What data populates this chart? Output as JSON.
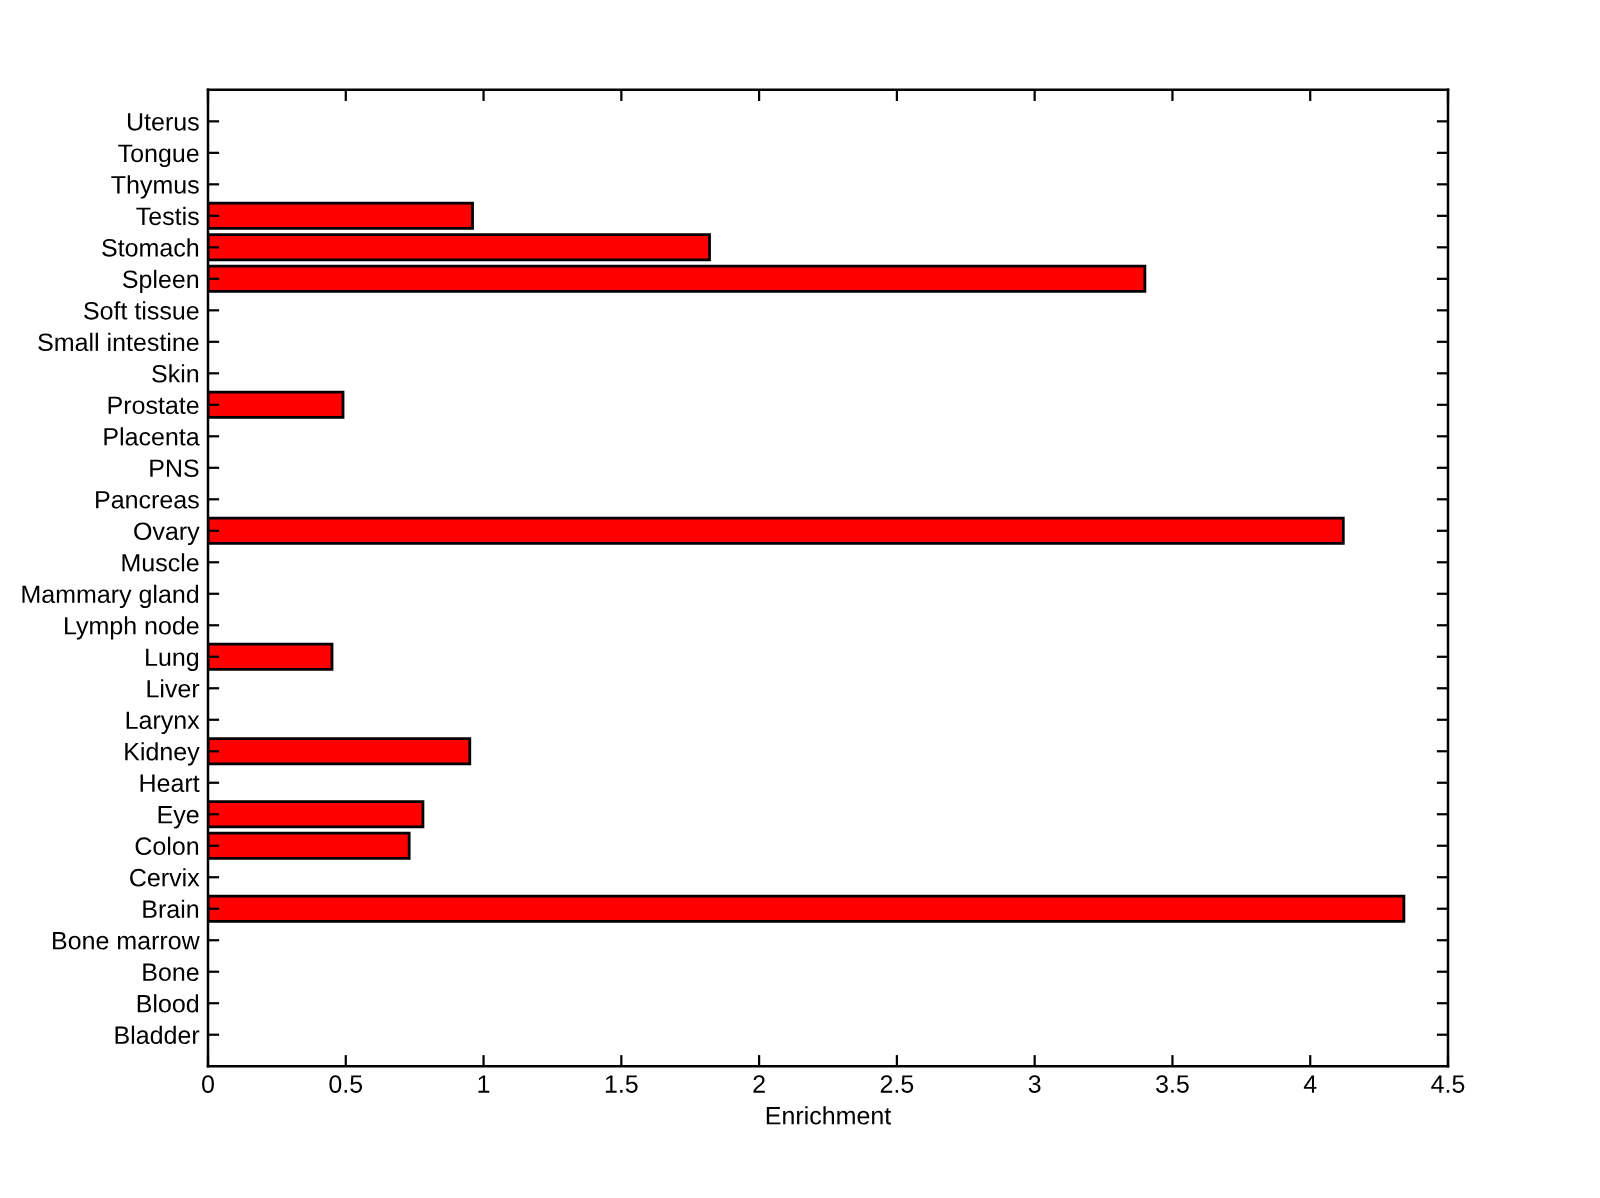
{
  "chart_data": {
    "type": "bar",
    "orientation": "horizontal",
    "categories": [
      "Uterus",
      "Tongue",
      "Thymus",
      "Testis",
      "Stomach",
      "Spleen",
      "Soft tissue",
      "Small intestine",
      "Skin",
      "Prostate",
      "Placenta",
      "PNS",
      "Pancreas",
      "Ovary",
      "Muscle",
      "Mammary gland",
      "Lymph node",
      "Lung",
      "Liver",
      "Larynx",
      "Kidney",
      "Heart",
      "Eye",
      "Colon",
      "Cervix",
      "Brain",
      "Bone marrow",
      "Bone",
      "Blood",
      "Bladder"
    ],
    "values": [
      0,
      0,
      0,
      0.96,
      1.82,
      3.4,
      0,
      0,
      0,
      0.49,
      0,
      0,
      0,
      4.12,
      0,
      0,
      0,
      0.45,
      0,
      0,
      0.95,
      0,
      0.78,
      0.73,
      0,
      4.34,
      0,
      0,
      0,
      0
    ],
    "color": "#ff0000",
    "xlim": [
      0,
      4.5
    ],
    "xticks": [
      0,
      0.5,
      1,
      1.5,
      2,
      2.5,
      3,
      3.5,
      4,
      4.5
    ],
    "xlabel": "Enrichment",
    "grid": false,
    "legend": false
  }
}
